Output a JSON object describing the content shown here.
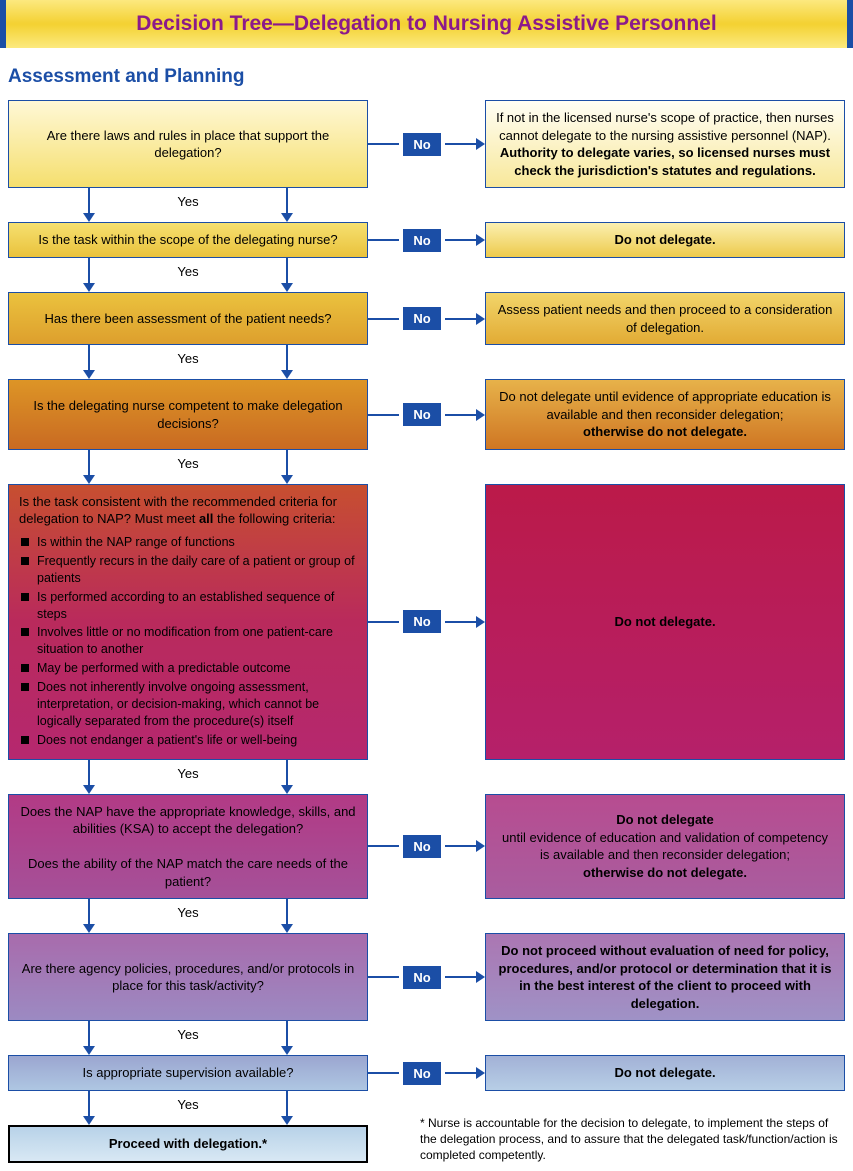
{
  "header": {
    "title": "Decision Tree—Delegation to Nursing Assistive Personnel"
  },
  "section_title": "Assessment and Planning",
  "labels": {
    "yes": "Yes",
    "no": "No"
  },
  "colors": {
    "blue": "#1b4ea6",
    "purple_title": "#8b1a8b"
  },
  "steps": [
    {
      "q": "Are there laws and rules in place that support the delegation?",
      "r_html": "If not in the licensed nurse's scope of practice, then nurses cannot delegate to the nursing assistive personnel (NAP). <b>Authority to delegate varies, so licensed nurses must check the jurisdiction's statutes and regulations.</b>",
      "q_bg": "linear-gradient(to bottom,#fff8d6,#f5df6e)",
      "r_bg": "linear-gradient(to bottom,#fffef5,#f8e89a)",
      "q_height": 48,
      "r_height": 66
    },
    {
      "q": "Is the task within the scope of the delegating nurse?",
      "r_html": "<b>Do not delegate.</b>",
      "q_bg": "linear-gradient(to bottom,#f6e070,#e9c23c)",
      "r_bg": "linear-gradient(to bottom,#fbf0b0,#edca4c)",
      "q_height": 36,
      "r_height": 36
    },
    {
      "q": "Has there been assessment of the patient needs?",
      "r_html": "Assess patient needs and then proceed to a consideration of delegation.",
      "q_bg": "linear-gradient(to bottom,#ebc23e,#dd9f2d)",
      "r_bg": "linear-gradient(to bottom,#f2d56a,#e2ab34)",
      "q_height": 36,
      "r_height": 44
    },
    {
      "q": "Is the delegating nurse competent to make delegation decisions?",
      "r_html": "Do not delegate until evidence of appropriate education is available and then reconsider delegation; <b>otherwise do not delegate.</b>",
      "q_bg": "linear-gradient(to bottom,#dd9526,#c96a22)",
      "r_bg": "linear-gradient(to bottom,#e7b24a,#cf7623)",
      "q_height": 44,
      "r_height": 50
    },
    {
      "q_html": "Is the task consistent with the recommended criteria for delegation to NAP? Must meet <b>all</b> the following criteria:",
      "criteria": [
        "Is within the NAP range of functions",
        "Frequently recurs in the daily care of a patient or group of patients",
        "Is performed according to an established sequence of steps",
        "Involves little or no modification from one patient-care situation to another",
        "May be performed with a predictable outcome",
        "Does not inherently involve ongoing assessment, interpretation, or decision-making, which cannot be logically separated from the procedure(s) itself",
        "Does not endanger a patient's life or well-being"
      ],
      "r_html": "<b>Do not delegate.</b>",
      "q_bg": "linear-gradient(to bottom,#c74f30,#b92a5c,#b5286f)",
      "r_bg": "linear-gradient(to bottom,#bb1a49,#b5206a)",
      "q_height": 246,
      "r_height": 36
    },
    {
      "q_html": "Does the NAP have the appropriate knowledge, skills, and abilities (KSA) to accept the delegation?<br><br>Does the ability of the NAP match the care needs of the patient?",
      "r_html": "<b>Do not delegate</b> until evidence of education and validation of competency is available and then reconsider delegation; <b>otherwise do not delegate.</b>",
      "q_bg": "linear-gradient(to bottom,#b23a85,#a55199)",
      "r_bg": "linear-gradient(to bottom,#b74c90,#a95d9f)",
      "q_height": 92,
      "r_height": 58
    },
    {
      "q": "Are there agency policies, procedures, and/or protocols in place for this task/activity?",
      "r_html": "<b>Do not proceed without evaluation of need for policy, procedures, and/or protocol or determination that it is in the best interest of the client to proceed with delegation.</b>",
      "q_bg": "linear-gradient(to bottom,#a86bac,#9c8ac2)",
      "r_bg": "linear-gradient(to bottom,#ab76b2,#9f92c6)",
      "q_height": 44,
      "r_height": 54
    },
    {
      "q": "Is appropriate supervision available?",
      "r_html": "<b>Do not delegate.</b>",
      "q_bg": "linear-gradient(to bottom,#9ba6d0,#aec6e2)",
      "r_bg": "linear-gradient(to bottom,#a2b1d6,#b7cee6)",
      "q_height": 34,
      "r_height": 34
    }
  ],
  "final": {
    "text": "Proceed with delegation.*",
    "bg": "linear-gradient(to bottom,#b8d2e8,#d8e8f4)"
  },
  "footnote": "* Nurse is accountable for the decision to delegate, to implement the steps of the delegation process, and to assure that the delegated task/function/action is completed competently."
}
